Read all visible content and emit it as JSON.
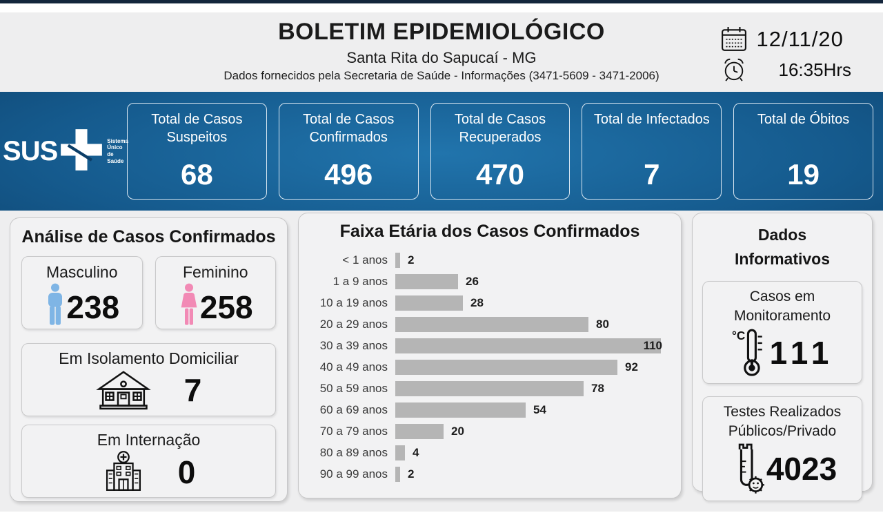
{
  "header": {
    "title": "BOLETIM EPIDEMIOLÓGICO",
    "subtitle": "Santa Rita do Sapucaí - MG",
    "info": "Dados fornecidos pela Secretaria de Saúde - Informações (3471-5609 - 3471-2006)",
    "date": "12/11/20",
    "time": "16:35Hrs"
  },
  "sus": {
    "name": "SUS",
    "tagline": "Sistema\nÚnico\nde Saúde"
  },
  "summary_cards": [
    {
      "label": "Total de Casos Suspeitos",
      "value": "68"
    },
    {
      "label": "Total de Casos Confirmados",
      "value": "496"
    },
    {
      "label": "Total de Casos Recuperados",
      "value": "470"
    },
    {
      "label": "Total de Infectados",
      "value": "7"
    },
    {
      "label": "Total de Óbitos",
      "value": "19"
    }
  ],
  "analysis": {
    "title": "Análise de Casos Confirmados",
    "male": {
      "label": "Masculino",
      "value": "238"
    },
    "female": {
      "label": "Feminino",
      "value": "258"
    },
    "isolation": {
      "label": "Em Isolamento Domiciliar",
      "value": "7"
    },
    "hospitalized": {
      "label": "Em Internação",
      "value": "0"
    }
  },
  "chart_data": {
    "type": "bar",
    "orientation": "horizontal",
    "title": "Faixa Etária dos Casos Confirmados",
    "categories": [
      "< 1 anos",
      "1 a 9 anos",
      "10 a 19 anos",
      "20 a 29 anos",
      "30 a 39 anos",
      "40 a 49 anos",
      "50 a 59 anos",
      "60 a 69 anos",
      "70 a 79 anos",
      "80 a 89 anos",
      "90 a 99 anos"
    ],
    "values": [
      2,
      26,
      28,
      80,
      110,
      92,
      78,
      54,
      20,
      4,
      2
    ],
    "xlim": [
      0,
      110
    ],
    "grid": false,
    "value_labels": true,
    "max_value_label_inside_bar": true,
    "bar_color": "#b5b5b5"
  },
  "informative": {
    "title": "Dados Informativos",
    "monitoring": {
      "label": "Casos em Monitoramento",
      "value": "111"
    },
    "tests": {
      "label": "Testes Realizados Públicos/Privado",
      "value": "4023"
    }
  },
  "icons": {
    "calendar": "calendar-icon",
    "clock": "alarm-clock-icon",
    "sus_cross": "sus-cross-icon",
    "male": "male-person-icon",
    "female": "female-person-icon",
    "house": "house-icon",
    "hospital": "hospital-icon",
    "thermometer": "thermometer-celsius-icon",
    "testtube": "test-tube-virus-icon"
  },
  "colors": {
    "top_strip_navy": "#14263c",
    "page_gray": "#eeeeef",
    "banner_blue_center": "#2174ac",
    "banner_blue_edge": "#082b4b",
    "bar_gray": "#b5b5b5",
    "male_blue": "#7fb5e5",
    "female_pink": "#f28ab5"
  }
}
